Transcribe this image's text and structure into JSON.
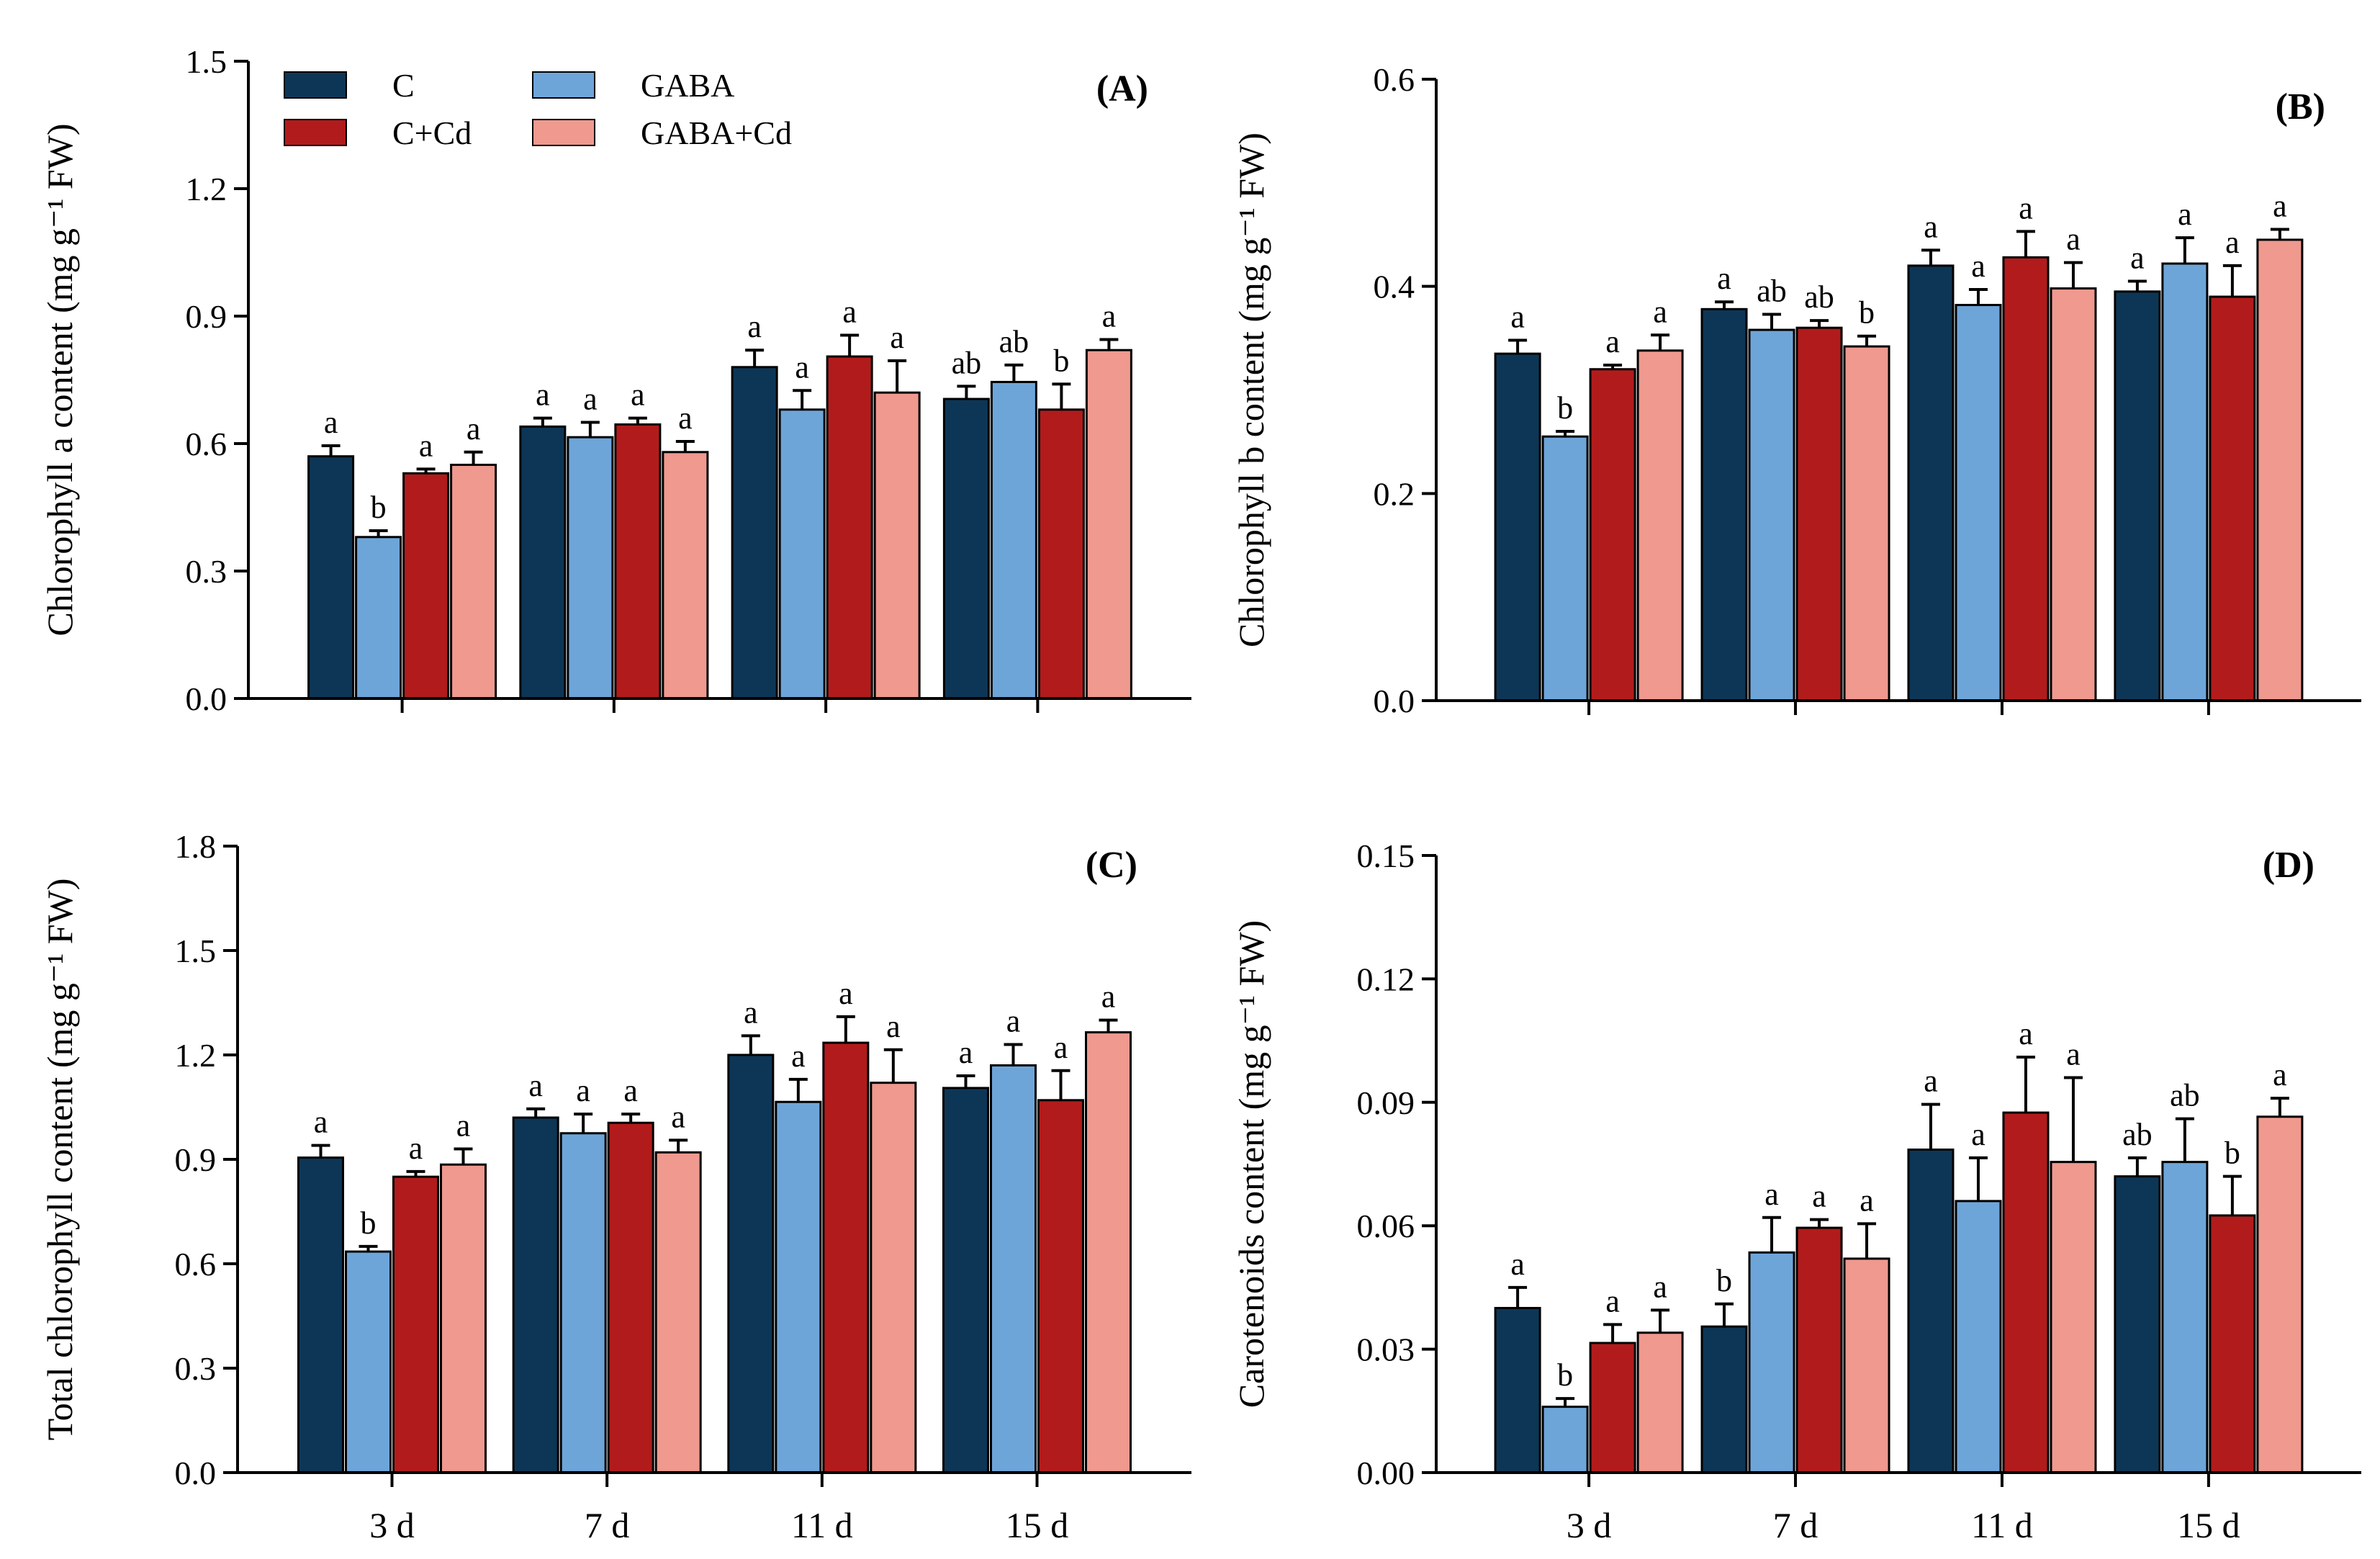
{
  "chart_data": [
    {
      "type": "bar",
      "panel_label": "(A)",
      "ylabel": "Chlorophyll a content (mg g⁻¹ FW)",
      "ylim": [
        0,
        1.5
      ],
      "yticks": [
        "0.0",
        "0.3",
        "0.6",
        "0.9",
        "1.2",
        "1.5"
      ],
      "categories": [
        "3 d",
        "7 d",
        "11 d",
        "15 d"
      ],
      "show_legend": true,
      "legend_position": "top-left",
      "series": [
        {
          "name": "C",
          "values": [
            0.57,
            0.64,
            0.78,
            0.705
          ],
          "errors": [
            0.025,
            0.02,
            0.04,
            0.03
          ],
          "letters": [
            "a",
            "a",
            "a",
            "ab"
          ]
        },
        {
          "name": "GABA",
          "values": [
            0.38,
            0.615,
            0.68,
            0.745
          ],
          "errors": [
            0.015,
            0.035,
            0.045,
            0.04
          ],
          "letters": [
            "b",
            "a",
            "a",
            "ab"
          ]
        },
        {
          "name": "C+Cd",
          "values": [
            0.53,
            0.645,
            0.805,
            0.68
          ],
          "errors": [
            0.01,
            0.015,
            0.05,
            0.06
          ],
          "letters": [
            "a",
            "a",
            "a",
            "b"
          ]
        },
        {
          "name": "GABA+Cd",
          "values": [
            0.55,
            0.58,
            0.72,
            0.82
          ],
          "errors": [
            0.03,
            0.025,
            0.075,
            0.025
          ],
          "letters": [
            "a",
            "a",
            "a",
            "a"
          ]
        }
      ]
    },
    {
      "type": "bar",
      "panel_label": "(B)",
      "ylabel": "Chlorophyll b content (mg g⁻¹ FW)",
      "ylim": [
        0,
        0.6
      ],
      "yticks": [
        "0.0",
        "0.2",
        "0.4",
        "0.6"
      ],
      "categories": [
        "3 d",
        "7 d",
        "11 d",
        "15 d"
      ],
      "show_legend": false,
      "series": [
        {
          "name": "C",
          "values": [
            0.335,
            0.378,
            0.42,
            0.395
          ],
          "errors": [
            0.013,
            0.007,
            0.015,
            0.01
          ],
          "letters": [
            "a",
            "a",
            "a",
            "a"
          ]
        },
        {
          "name": "GABA",
          "values": [
            0.255,
            0.358,
            0.382,
            0.422
          ],
          "errors": [
            0.005,
            0.015,
            0.015,
            0.025
          ],
          "letters": [
            "b",
            "ab",
            "a",
            "a"
          ]
        },
        {
          "name": "C+Cd",
          "values": [
            0.32,
            0.36,
            0.428,
            0.39
          ],
          "errors": [
            0.004,
            0.007,
            0.025,
            0.03
          ],
          "letters": [
            "a",
            "ab",
            "a",
            "a"
          ]
        },
        {
          "name": "GABA+Cd",
          "values": [
            0.338,
            0.342,
            0.398,
            0.445
          ],
          "errors": [
            0.015,
            0.01,
            0.025,
            0.01
          ],
          "letters": [
            "a",
            "b",
            "a",
            "a"
          ]
        }
      ]
    },
    {
      "type": "bar",
      "panel_label": "(C)",
      "ylabel": "Total chlorophyll content (mg g⁻¹ FW)",
      "ylim": [
        0,
        1.8
      ],
      "yticks": [
        "0.0",
        "0.3",
        "0.6",
        "0.9",
        "1.2",
        "1.5",
        "1.8"
      ],
      "categories": [
        "3 d",
        "7 d",
        "11 d",
        "15 d"
      ],
      "show_legend": false,
      "series": [
        {
          "name": "C",
          "values": [
            0.905,
            1.02,
            1.2,
            1.105
          ],
          "errors": [
            0.035,
            0.025,
            0.055,
            0.035
          ],
          "letters": [
            "a",
            "a",
            "a",
            "a"
          ]
        },
        {
          "name": "GABA",
          "values": [
            0.635,
            0.975,
            1.065,
            1.17
          ],
          "errors": [
            0.015,
            0.055,
            0.065,
            0.06
          ],
          "letters": [
            "b",
            "a",
            "a",
            "a"
          ]
        },
        {
          "name": "C+Cd",
          "values": [
            0.85,
            1.005,
            1.235,
            1.07
          ],
          "errors": [
            0.015,
            0.025,
            0.075,
            0.085
          ],
          "letters": [
            "a",
            "a",
            "a",
            "a"
          ]
        },
        {
          "name": "GABA+Cd",
          "values": [
            0.885,
            0.92,
            1.12,
            1.265
          ],
          "errors": [
            0.045,
            0.035,
            0.095,
            0.035
          ],
          "letters": [
            "a",
            "a",
            "a",
            "a"
          ]
        }
      ]
    },
    {
      "type": "bar",
      "panel_label": "(D)",
      "ylabel": "Carotenoids content (mg g⁻¹ FW)",
      "ylim": [
        0,
        0.15
      ],
      "yticks": [
        "0.00",
        "0.03",
        "0.06",
        "0.09",
        "0.12",
        "0.15"
      ],
      "categories": [
        "3 d",
        "7 d",
        "11 d",
        "15 d"
      ],
      "show_legend": false,
      "series": [
        {
          "name": "C",
          "values": [
            0.04,
            0.0355,
            0.0785,
            0.072
          ],
          "errors": [
            0.005,
            0.0055,
            0.011,
            0.0045
          ],
          "letters": [
            "a",
            "b",
            "a",
            "ab"
          ]
        },
        {
          "name": "GABA",
          "values": [
            0.016,
            0.0535,
            0.066,
            0.0755
          ],
          "errors": [
            0.002,
            0.0085,
            0.0105,
            0.0105
          ],
          "letters": [
            "b",
            "a",
            "a",
            "ab"
          ]
        },
        {
          "name": "C+Cd",
          "values": [
            0.0315,
            0.0595,
            0.0875,
            0.0625
          ],
          "errors": [
            0.0045,
            0.002,
            0.0135,
            0.0095
          ],
          "letters": [
            "a",
            "a",
            "a",
            "b"
          ]
        },
        {
          "name": "GABA+Cd",
          "values": [
            0.034,
            0.052,
            0.0755,
            0.0865
          ],
          "errors": [
            0.0055,
            0.0085,
            0.0205,
            0.0045
          ],
          "letters": [
            "a",
            "a",
            "a",
            "a"
          ]
        }
      ]
    }
  ],
  "colors": {
    "C": "#0d3656",
    "GABA": "#6ea5d9",
    "C+Cd": "#b21b1b",
    "GABA+Cd": "#ef998f"
  },
  "legend": {
    "items": [
      {
        "key": "C",
        "label": "C"
      },
      {
        "key": "C+Cd",
        "label": "C+Cd"
      },
      {
        "key": "GABA",
        "label": "GABA"
      },
      {
        "key": "GABA+Cd",
        "label": "GABA+Cd"
      }
    ]
  }
}
